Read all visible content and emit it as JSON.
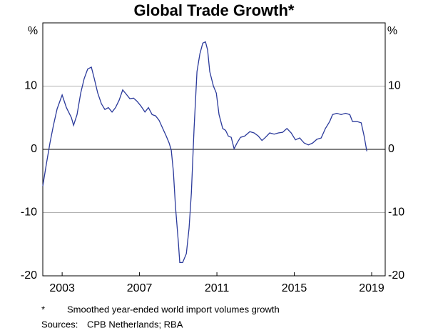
{
  "chart_data": {
    "type": "line",
    "title": "Global Trade Growth*",
    "y_unit": "%",
    "footnote_marker": "*",
    "footnote": "Smoothed year-ended world import volumes growth",
    "sources_label": "Sources:",
    "sources": "CPB Netherlands; RBA",
    "xlim": [
      2002,
      2019.7
    ],
    "xticks": [
      2003,
      2007,
      2011,
      2015,
      2019
    ],
    "ylim": [
      -20,
      20
    ],
    "yticks": [
      -20,
      -10,
      0,
      10
    ],
    "grid": true,
    "x": [
      2002.0,
      2002.18,
      2002.37,
      2002.55,
      2002.74,
      2003.0,
      2003.22,
      2003.48,
      2003.59,
      2003.77,
      2003.96,
      2004.14,
      2004.32,
      2004.51,
      2004.66,
      2004.84,
      2005.03,
      2005.21,
      2005.39,
      2005.58,
      2005.76,
      2005.95,
      2006.13,
      2006.32,
      2006.5,
      2006.69,
      2006.87,
      2007.06,
      2007.28,
      2007.46,
      2007.65,
      2007.83,
      2008.01,
      2008.2,
      2008.38,
      2008.53,
      2008.64,
      2008.75,
      2008.86,
      2009.01,
      2009.08,
      2009.23,
      2009.42,
      2009.56,
      2009.68,
      2009.82,
      2009.97,
      2010.12,
      2010.27,
      2010.41,
      2010.52,
      2010.63,
      2010.82,
      2010.97,
      2011.11,
      2011.3,
      2011.45,
      2011.59,
      2011.74,
      2011.89,
      2012.04,
      2012.22,
      2012.44,
      2012.7,
      2012.92,
      2013.14,
      2013.33,
      2013.51,
      2013.73,
      2013.96,
      2014.18,
      2014.4,
      2014.62,
      2014.84,
      2015.06,
      2015.28,
      2015.51,
      2015.73,
      2015.95,
      2016.17,
      2016.39,
      2016.61,
      2016.83,
      2016.98,
      2017.2,
      2017.42,
      2017.65,
      2017.87,
      2018.01,
      2018.24,
      2018.46,
      2018.61,
      2018.75
    ],
    "series": [
      {
        "name": "Global trade growth",
        "color": "#2b3a9b",
        "values": [
          -5.8,
          -2.4,
          1,
          3.8,
          6.4,
          8.6,
          6.6,
          5,
          3.8,
          5.5,
          8.9,
          11.2,
          12.7,
          13,
          11.2,
          8.9,
          7.2,
          6.3,
          6.6,
          5.9,
          6.6,
          7.8,
          9.4,
          8.7,
          8,
          8.1,
          7.6,
          6.9,
          5.9,
          6.6,
          5.5,
          5.3,
          4.6,
          3.3,
          2.1,
          1,
          -0.1,
          -3.5,
          -9.1,
          -14.8,
          -17.9,
          -17.9,
          -16.5,
          -12.5,
          -6.9,
          3.3,
          12.3,
          15.1,
          16.8,
          17,
          15.7,
          12.3,
          10,
          8.9,
          5.5,
          3.3,
          3,
          2.1,
          1.9,
          0.1,
          1,
          1.9,
          2.1,
          2.8,
          2.6,
          2.1,
          1.4,
          1.9,
          2.6,
          2.4,
          2.6,
          2.7,
          3.3,
          2.6,
          1.5,
          1.8,
          1,
          0.7,
          1,
          1.6,
          1.8,
          3.3,
          4.4,
          5.5,
          5.7,
          5.5,
          5.7,
          5.5,
          4.4,
          4.4,
          4.2,
          2.1,
          -0.3
        ]
      }
    ]
  }
}
